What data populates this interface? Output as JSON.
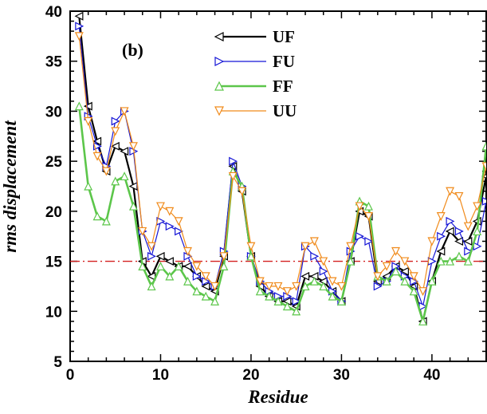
{
  "chart_data": {
    "type": "line",
    "panel_label": "(b)",
    "xlabel": "Residue",
    "ylabel": "rms displacement",
    "xlim": [
      0,
      46
    ],
    "ylim": [
      5,
      40
    ],
    "xticks": [
      0,
      10,
      20,
      30,
      40
    ],
    "yticks": [
      5,
      10,
      15,
      20,
      25,
      30,
      35,
      40
    ],
    "x_minor_step": 2,
    "y_minor_step": 1,
    "grid": false,
    "legend_position": "top-center",
    "reference_line": {
      "y": 15,
      "color": "#d42020",
      "style": "dash-dot"
    },
    "x": [
      1,
      2,
      3,
      4,
      5,
      6,
      7,
      8,
      9,
      10,
      11,
      12,
      13,
      14,
      15,
      16,
      17,
      18,
      19,
      20,
      21,
      22,
      23,
      24,
      25,
      26,
      27,
      28,
      29,
      30,
      31,
      32,
      33,
      34,
      35,
      36,
      37,
      38,
      39,
      40,
      41,
      42,
      43,
      44,
      45,
      46
    ],
    "series": [
      {
        "name": "UF",
        "color": "#000000",
        "marker": "triangle-left",
        "stroke_width": 2.2,
        "values": [
          39.5,
          30.5,
          27.0,
          24.0,
          26.5,
          26.0,
          22.5,
          15.0,
          13.5,
          15.5,
          15.0,
          14.5,
          14.5,
          13.5,
          12.5,
          12.0,
          15.5,
          24.5,
          22.0,
          15.5,
          12.5,
          11.5,
          11.0,
          11.0,
          10.5,
          13.5,
          13.5,
          13.0,
          12.0,
          11.0,
          15.0,
          20.0,
          19.5,
          13.0,
          13.5,
          14.5,
          14.0,
          12.5,
          9.0,
          13.0,
          16.0,
          18.0,
          17.0,
          17.0,
          19.0,
          23.5
        ]
      },
      {
        "name": "FU",
        "color": "#1515d6",
        "marker": "triangle-right",
        "stroke_width": 1.2,
        "values": [
          38.5,
          29.5,
          26.5,
          24.5,
          29.0,
          30.0,
          26.0,
          18.0,
          15.5,
          19.0,
          18.5,
          18.0,
          15.5,
          13.5,
          13.0,
          12.5,
          16.0,
          25.0,
          22.5,
          15.5,
          13.0,
          12.0,
          11.5,
          11.5,
          11.0,
          16.5,
          15.5,
          14.0,
          12.0,
          11.0,
          16.0,
          17.5,
          17.0,
          12.5,
          13.0,
          14.5,
          13.5,
          13.0,
          10.5,
          15.0,
          17.5,
          19.0,
          18.0,
          16.0,
          16.5,
          21.0
        ]
      },
      {
        "name": "FF",
        "color": "#5cc64a",
        "marker": "triangle-up",
        "stroke_width": 2.6,
        "values": [
          30.5,
          22.5,
          19.5,
          19.0,
          23.0,
          23.5,
          20.5,
          14.5,
          12.5,
          14.5,
          13.5,
          14.5,
          13.0,
          12.0,
          11.5,
          11.0,
          14.5,
          24.0,
          22.5,
          15.5,
          12.0,
          11.5,
          11.0,
          10.5,
          10.0,
          12.5,
          13.0,
          12.5,
          11.5,
          11.0,
          15.0,
          21.0,
          20.5,
          13.5,
          13.0,
          14.0,
          13.0,
          12.0,
          9.0,
          13.0,
          15.0,
          15.0,
          15.5,
          15.0,
          18.0,
          26.5
        ]
      },
      {
        "name": "UU",
        "color": "#f08a1a",
        "marker": "triangle-down",
        "stroke_width": 1.2,
        "values": [
          37.5,
          29.0,
          25.5,
          24.0,
          28.0,
          30.0,
          26.5,
          18.0,
          16.5,
          20.5,
          20.0,
          19.0,
          16.0,
          14.5,
          13.5,
          12.5,
          15.5,
          23.5,
          22.0,
          16.5,
          13.0,
          12.5,
          12.5,
          12.0,
          12.5,
          16.5,
          17.0,
          15.0,
          13.0,
          12.5,
          16.5,
          20.5,
          19.5,
          13.5,
          14.5,
          16.0,
          15.0,
          13.5,
          12.0,
          17.0,
          19.5,
          22.0,
          21.5,
          18.5,
          20.5,
          24.5
        ]
      }
    ]
  }
}
